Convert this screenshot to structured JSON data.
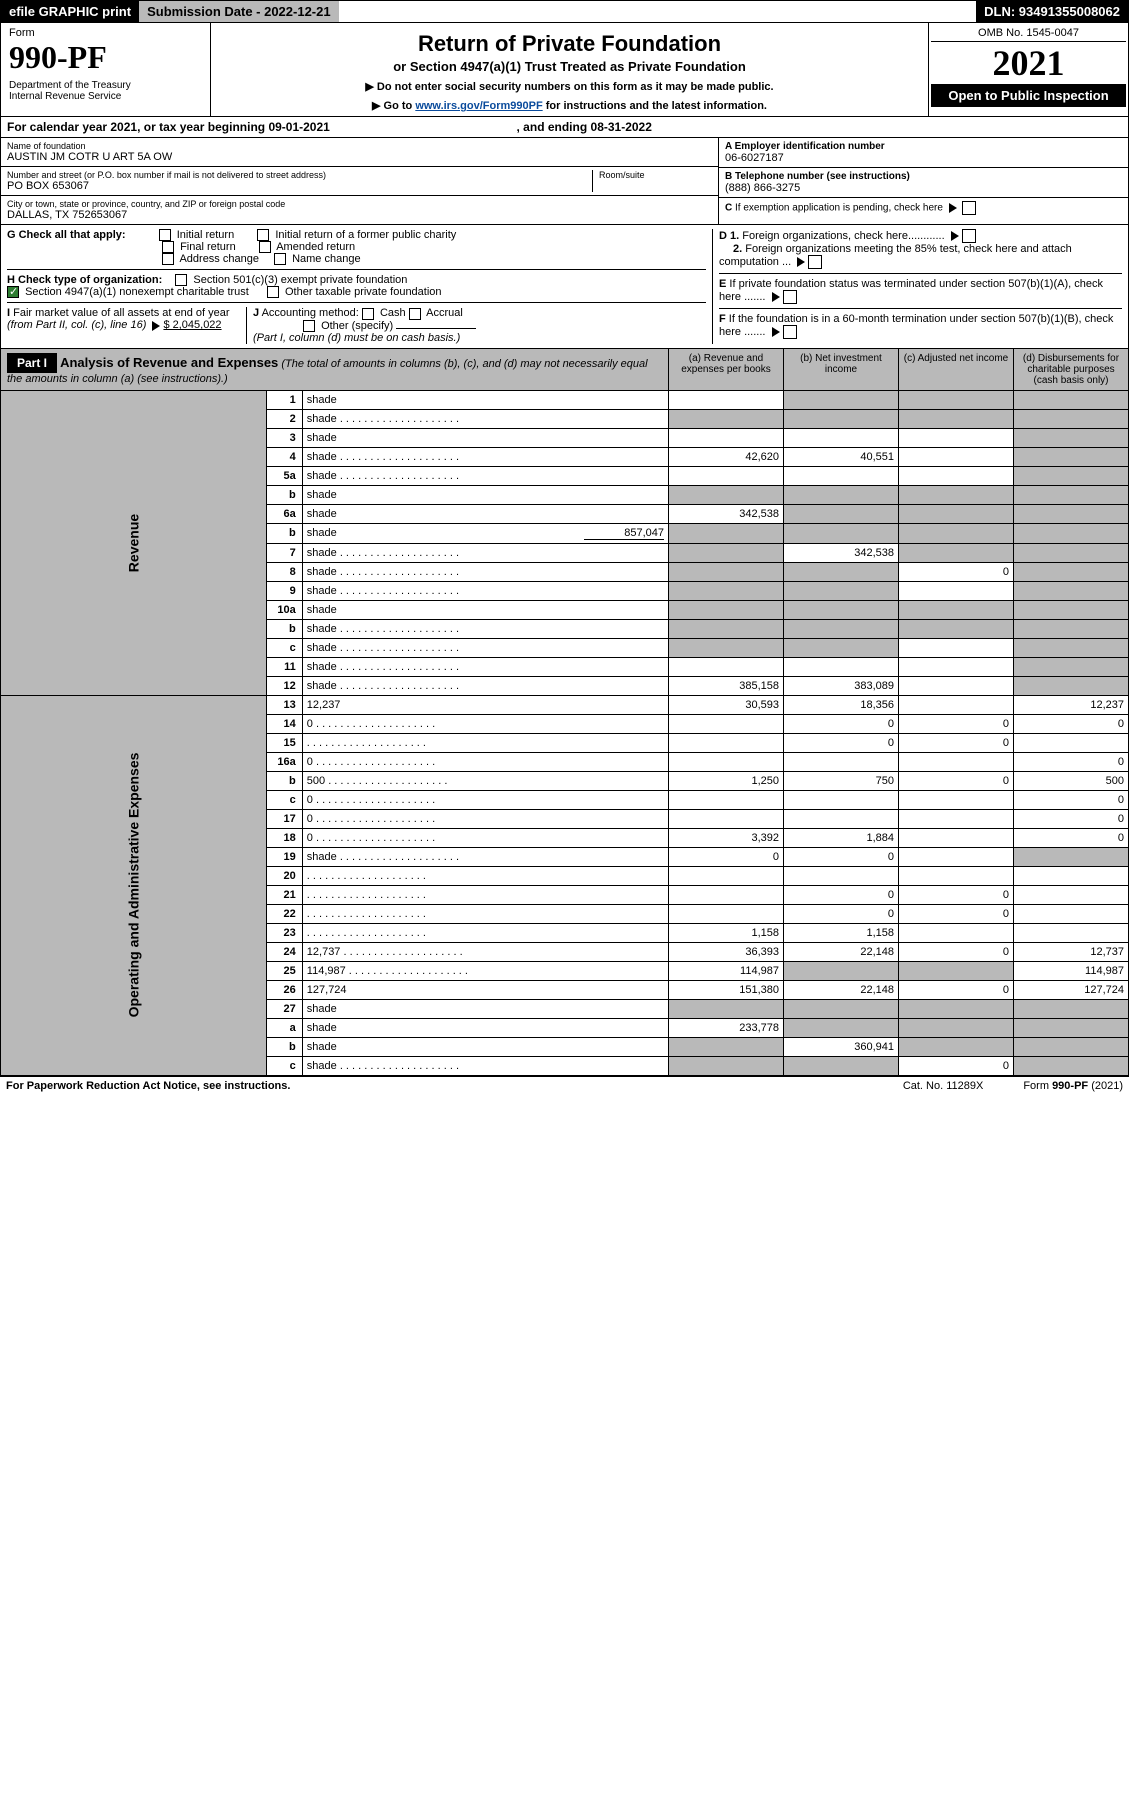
{
  "topbar": {
    "efile": "efile GRAPHIC print",
    "submission": "Submission Date - 2022-12-21",
    "dln": "DLN: 93491355008062"
  },
  "header": {
    "form_label": "Form",
    "form_num": "990-PF",
    "dept": "Department of the Treasury\nInternal Revenue Service",
    "title1": "Return of Private Foundation",
    "title2": "or Section 4947(a)(1) Trust Treated as Private Foundation",
    "sub1": "▶ Do not enter social security numbers on this form as it may be made public.",
    "sub2_pre": "▶ Go to ",
    "sub2_link": "www.irs.gov/Form990PF",
    "sub2_post": " for instructions and the latest information.",
    "omb": "OMB No. 1545-0047",
    "year": "2021",
    "inspection": "Open to Public Inspection"
  },
  "calline": {
    "pre": "For calendar year 2021, or tax year beginning 09-01-2021",
    "mid": ", and ending 08-31-2022"
  },
  "info": {
    "name_lbl": "Name of foundation",
    "name": "AUSTIN JM COTR U ART 5A OW",
    "addr_lbl": "Number and street (or P.O. box number if mail is not delivered to street address)",
    "addr": "PO BOX 653067",
    "room_lbl": "Room/suite",
    "city_lbl": "City or town, state or province, country, and ZIP or foreign postal code",
    "city": "DALLAS, TX  752653067",
    "a_lbl": "A Employer identification number",
    "a_val": "06-6027187",
    "b_lbl": "B Telephone number (see instructions)",
    "b_val": "(888) 866-3275",
    "c_lbl": "C If exemption application is pending, check here",
    "d1": "D 1. Foreign organizations, check here............",
    "d2": "2. Foreign organizations meeting the 85% test, check here and attach computation ...",
    "e": "E  If private foundation status was terminated under section 507(b)(1)(A), check here .......",
    "f": "F  If the foundation is in a 60-month termination under section 507(b)(1)(B), check here .......",
    "g_lbl": "G Check all that apply:",
    "g_opts": [
      "Initial return",
      "Initial return of a former public charity",
      "Final return",
      "Amended return",
      "Address change",
      "Name change"
    ],
    "h_lbl": "H Check type of organization:",
    "h_opts": [
      "Section 501(c)(3) exempt private foundation",
      "Section 4947(a)(1) nonexempt charitable trust",
      "Other taxable private foundation"
    ],
    "i_lbl": "I Fair market value of all assets at end of year (from Part II, col. (c), line 16)",
    "i_val": "$  2,045,022",
    "j_lbl": "J Accounting method:",
    "j_opts": [
      "Cash",
      "Accrual",
      "Other (specify)"
    ],
    "j_note": "(Part I, column (d) must be on cash basis.)"
  },
  "part1": {
    "label": "Part I",
    "title": "Analysis of Revenue and Expenses",
    "title_note": "(The total of amounts in columns (b), (c), and (d) may not necessarily equal the amounts in column (a) (see instructions).)",
    "col_a": "(a)   Revenue and expenses per books",
    "col_b": "(b)   Net investment income",
    "col_c": "(c)   Adjusted net income",
    "col_d": "(d)   Disbursements for charitable purposes (cash basis only)"
  },
  "side_labels": {
    "rev": "Revenue",
    "exp": "Operating and Administrative Expenses"
  },
  "rows": [
    {
      "n": "1",
      "d": "shade",
      "a": "",
      "b": "shade",
      "c": "shade"
    },
    {
      "n": "2",
      "d": "shade",
      "a": "shade",
      "b": "shade",
      "c": "shade",
      "dots": true
    },
    {
      "n": "3",
      "d": "shade",
      "a": "",
      "b": "",
      "c": ""
    },
    {
      "n": "4",
      "d": "shade",
      "a": "42,620",
      "b": "40,551",
      "c": "",
      "dots": true
    },
    {
      "n": "5a",
      "d": "shade",
      "a": "",
      "b": "",
      "c": "",
      "dots": true
    },
    {
      "n": "b",
      "d": "shade",
      "a": "shade",
      "b": "shade",
      "c": "shade",
      "inset": true
    },
    {
      "n": "6a",
      "d": "shade",
      "a": "342,538",
      "b": "shade",
      "c": "shade"
    },
    {
      "n": "b",
      "d": "shade",
      "a": "shade",
      "b": "shade",
      "c": "shade",
      "inset": true,
      "inset_val": "857,047"
    },
    {
      "n": "7",
      "d": "shade",
      "a": "shade",
      "b": "342,538",
      "c": "shade",
      "dots": true
    },
    {
      "n": "8",
      "d": "shade",
      "a": "shade",
      "b": "shade",
      "c": "0",
      "dots": true
    },
    {
      "n": "9",
      "d": "shade",
      "a": "shade",
      "b": "shade",
      "c": "",
      "dots": true
    },
    {
      "n": "10a",
      "d": "shade",
      "a": "shade",
      "b": "shade",
      "c": "shade",
      "inset": true
    },
    {
      "n": "b",
      "d": "shade",
      "a": "shade",
      "b": "shade",
      "c": "shade",
      "inset": true,
      "dots": true
    },
    {
      "n": "c",
      "d": "shade",
      "a": "shade",
      "b": "shade",
      "c": "",
      "dots": true
    },
    {
      "n": "11",
      "d": "shade",
      "a": "",
      "b": "",
      "c": "",
      "dots": true
    },
    {
      "n": "12",
      "d": "shade",
      "a": "385,158",
      "b": "383,089",
      "c": "",
      "dots": true
    }
  ],
  "exp_rows": [
    {
      "n": "13",
      "d": "12,237",
      "a": "30,593",
      "b": "18,356",
      "c": ""
    },
    {
      "n": "14",
      "d": "0",
      "a": "",
      "b": "0",
      "c": "0",
      "dots": true
    },
    {
      "n": "15",
      "d": "",
      "a": "",
      "b": "0",
      "c": "0",
      "dots": true
    },
    {
      "n": "16a",
      "d": "0",
      "a": "",
      "b": "",
      "c": "",
      "dots": true
    },
    {
      "n": "b",
      "d": "500",
      "a": "1,250",
      "b": "750",
      "c": "0",
      "dots": true
    },
    {
      "n": "c",
      "d": "0",
      "a": "",
      "b": "",
      "c": "",
      "dots": true
    },
    {
      "n": "17",
      "d": "0",
      "a": "",
      "b": "",
      "c": "",
      "dots": true
    },
    {
      "n": "18",
      "d": "0",
      "a": "3,392",
      "b": "1,884",
      "c": "",
      "dots": true
    },
    {
      "n": "19",
      "d": "shade",
      "a": "0",
      "b": "0",
      "c": "",
      "dots": true
    },
    {
      "n": "20",
      "d": "",
      "a": "",
      "b": "",
      "c": "",
      "dots": true
    },
    {
      "n": "21",
      "d": "",
      "a": "",
      "b": "0",
      "c": "0",
      "dots": true
    },
    {
      "n": "22",
      "d": "",
      "a": "",
      "b": "0",
      "c": "0",
      "dots": true
    },
    {
      "n": "23",
      "d": "",
      "a": "1,158",
      "b": "1,158",
      "c": "",
      "dots": true
    },
    {
      "n": "24",
      "d": "12,737",
      "a": "36,393",
      "b": "22,148",
      "c": "0",
      "dots": true
    },
    {
      "n": "25",
      "d": "114,987",
      "a": "114,987",
      "b": "shade",
      "c": "shade",
      "dots": true
    },
    {
      "n": "26",
      "d": "127,724",
      "a": "151,380",
      "b": "22,148",
      "c": "0"
    },
    {
      "n": "27",
      "d": "shade",
      "a": "shade",
      "b": "shade",
      "c": "shade"
    },
    {
      "n": "a",
      "d": "shade",
      "a": "233,778",
      "b": "shade",
      "c": "shade"
    },
    {
      "n": "b",
      "d": "shade",
      "a": "shade",
      "b": "360,941",
      "c": "shade"
    },
    {
      "n": "c",
      "d": "shade",
      "a": "shade",
      "b": "shade",
      "c": "0",
      "dots": true
    }
  ],
  "footer": {
    "left": "For Paperwork Reduction Act Notice, see instructions.",
    "mid": "Cat. No. 11289X",
    "right": "Form 990-PF (2021)"
  }
}
